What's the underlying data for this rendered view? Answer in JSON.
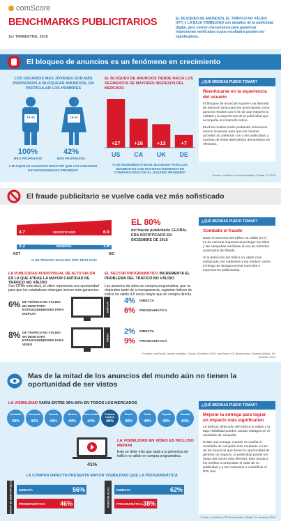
{
  "header": {
    "logo": "comScore",
    "title": "BENCHMARKS PUBLICITARIOS",
    "date": "1er TRIMESTRE, 2016",
    "intro": "EL BLOQUEO DE ANUNCIOS, EL TRÁFICO NO VÁLIDO (IVT) y LA BAJA VISIBILIDAD son desafíos de la publicidad digital, pero existen mecanismos para garantizar impresiones verificadas cuyos resultados pueden ser significativos."
  },
  "adblock": {
    "title": "El bloqueo de anuncios es un fenómeno en crecimiento",
    "young": {
      "heading": "LOS USUARIOS MÁS JÓVENES SON MÁS PROPENSOS A BLOQUEAR ANUNCIOS, EN PARTICULAR LOS HOMBRES",
      "figures": [
        {
          "age": "18-34",
          "value": "100%",
          "label": "MÁS PROPENSOS"
        },
        {
          "age": "18-34",
          "value": "42%",
          "label": "MÁS PROPENSOS"
        }
      ],
      "note": "A BLOQUEAR ANUNCIOS DESKTOP QUE LOS USUARIOS ESTADOUNIDENSES PROMEDIO"
    },
    "income_chart": {
      "type": "bar",
      "title": "EL BLOQUEO DE ANUNCIOS TIENDE HACIA LOS SEGMENTOS DE MAYORES INGRESOS DEL MERCADO",
      "categories": [
        "US",
        "CA",
        "UK",
        "DE"
      ],
      "values": [
        27,
        16,
        13,
        7
      ],
      "value_labels": [
        "+27",
        "+16",
        "+13",
        "+7"
      ],
      "color": "#d7192a",
      "caption": "% DE INCREMENTO EN EL BLOQUEO PARA LOS SEGMENTOS CON MAYORES INGRESOS EN COMPARACIÓN CON EL USUARIO PROMEDIO"
    },
    "tip": {
      "heading": "¿QUÉ MEDIDAS PUEDO TOMAR?",
      "title": "Reenfocarse en la experiencia del usuario",
      "paragraphs": [
        "El bloqueo de anuncios supone una llamada de atención tanto para los anunciantes como para los medios con el fin de que mejoren la calidad y la experiencia de la publicidad que acompaña al contenido online.",
        "Muchos medios están probando soluciones menos invasivas para que los clientes accedan al contenido con o sin publicidad, y muchas de estas alternativas demuestran ser efectivas."
      ]
    },
    "source": "Fuente: comScore Custom Analytics, Global, 1T 2016"
  },
  "fraud": {
    "title": "El fraude publicitario se vuelve cada vez más sofisticado",
    "chart": {
      "type": "area",
      "categories": [
        "OCT",
        "DIC"
      ],
      "series": [
        {
          "name": "SOFISTICADO",
          "color": "#d7192a",
          "values": [
            4.7,
            6.9
          ]
        },
        {
          "name": "GENERAL",
          "color": "#2a7ab8",
          "values": [
            2.2,
            1.8
          ]
        }
      ],
      "caption": "% DE TRÁFICO INVÁLIDO POR TIPOLOGÍA"
    },
    "stat": {
      "value": "EL 80%",
      "text": "del fraude publicitario GLOBAL ERA SOFISTICADO EN DICIEMBRE DE 2015"
    },
    "video_col": {
      "heading": "LA PUBLICIDAD AUDIOVISUAL DE ALTO VALOR",
      "heading_rest": "ES LA QUE ATRAE LA MAYOR CANTIDAD DE TRÁFICO NO VÁLIDO",
      "text": "Con CPMs más altos, el video representa una oportunidad para que los estafadores obtengan incluso más ganancias"
    },
    "prog_col": {
      "heading": "EL SECTOR PROGRAMÁTICO",
      "heading_rest": "INCREMENTA EL PROBLEMA DEL TRÁFICO NO VÁLIDO",
      "text": "Los anuncios de video en compra programática, que no dependen tanto de la transparencia, registran índices de tráfico no válido 4,5 veces mayor que en compra directa"
    },
    "rows": [
      {
        "value": "6%",
        "text": "DE TRÁFICO NO VÁLIDO EN DESKTOPS ESTADOUNIDENSES PARA DISPLAY",
        "device": "DISPLAY",
        "direct": "4%",
        "direct_label": "DIRECTA",
        "prog": "6%",
        "prog_label": "PROGRAMÁTICA"
      },
      {
        "value": "8%",
        "text": "DE TRÁFICO NO VÁLIDO EN DESKTOPS ESTADOUNIDENSES PARA VIDEO",
        "device": "VIDEO",
        "direct": "2%",
        "direct_label": "DIRECTA",
        "prog": "9%",
        "prog_label": "PROGRAMÁTICA"
      }
    ],
    "tip": {
      "heading": "¿QUÉ MEDIDAS PUEDO TOMAR?",
      "title": "Combatir el fraude",
      "paragraphs": [
        "Dado el aumento del tráfico no válido (IVT), es de extrema importancia proteger los sitios y las campañas mediante el uso de métodos avanzados de filtrado.",
        "Si la detección del tráfico no válido más sofisticado, los marketers y los medios corren el riesgo de desaprovechar inversión e impresiones publicitarias."
      ]
    },
    "source": "Fuentes: comScore Custom Analytics, Global, Diciembre 2015; comScore vCE Benchmarks, Estados Unidos, 1er trimestre 2016"
  },
  "viewability": {
    "title": "Mas de la mitad de los anuncios del mundo aún no tienen la oportunidad de ser vistos",
    "subtitle_red": "LA VISIBILIDAD",
    "subtitle": "VARÍA ENTRE 39%-50% EN TODOS LOS MERCADOS",
    "markets": [
      {
        "name": "Australia",
        "value": "39%"
      },
      {
        "name": "Alemania",
        "value": "43%"
      },
      {
        "name": "Francia",
        "value": "44%"
      },
      {
        "name": "México",
        "value": "44%"
      },
      {
        "name": "Reino Unido",
        "value": "44%"
      },
      {
        "name": "Estados Unidos",
        "value": "48%"
      },
      {
        "name": "Brasil",
        "value": "48%"
      },
      {
        "name": "Italia",
        "value": "49%"
      },
      {
        "name": "España",
        "value": "49%"
      },
      {
        "name": "Canadá",
        "value": "50%"
      }
    ],
    "video": {
      "heading": "LA VISIBILIDAD EN VIDEO ES INCLUSO MENOR",
      "text": "Esto se debe más que nada a la presencia de tráfico no válido en compra programática.",
      "value": "41%"
    },
    "direct_heading": "LA COMPRA DIRECTA PRESENTA MAYOR VISIBILIDAD QUE LA PROGRAMÁTICA",
    "desktop_chart": {
      "type": "bar",
      "label": "DISPLAY EN DESKTOP EE.UU.",
      "categories": [
        "DIRECTA",
        "PROGRAMÁTICA"
      ],
      "values": [
        56,
        46
      ],
      "value_labels": [
        "56%",
        "46%"
      ],
      "colors": [
        "#2a7ab8",
        "#d7192a"
      ]
    },
    "video_chart": {
      "type": "bar",
      "label": "VIDEO EN EE.UU.",
      "categories": [
        "DIRECTA",
        "PROGRAMÁTICA"
      ],
      "values": [
        62,
        38
      ],
      "value_labels": [
        "62%",
        "38%"
      ],
      "colors": [
        "#2a7ab8",
        "#d7192a"
      ]
    },
    "tip": {
      "heading": "¿QUÉ MEDIDAS PUEDO TOMAR?",
      "title": "Mejorar la entrega para lograr un impacto más significativo",
      "paragraphs": [
        "La ineficaz detección del tráfico no válido y la baja visibilidad pueden causar estragos en el resultado de campaña.",
        "Existe una ventaja: cuando se evalúa el resultado de campaña solo mediante el uso de los anuncios que tienen la oportunidad de generar un impacto, la publicidad puede ser hasta dos veces más efectiva. Esto ayuda a los medios a comprobar el valor de su publicidad y a los marketers a cuantificar el ROI real."
      ]
    },
    "source": "Fuente: comScore vCE Benchmarks, Global, 1er trimestre 2016"
  }
}
